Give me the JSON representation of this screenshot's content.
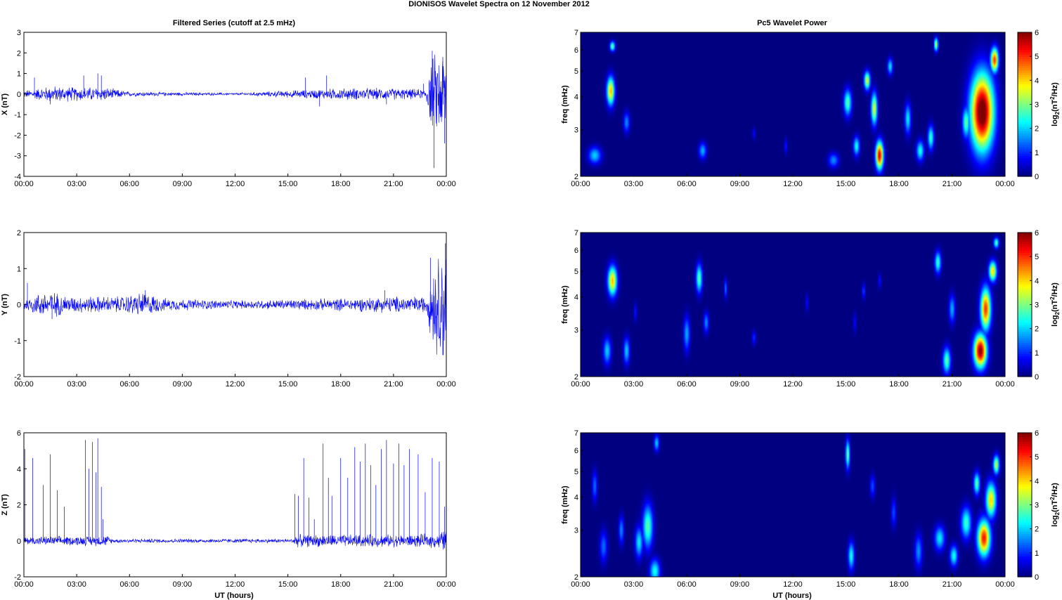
{
  "figure": {
    "title": "DIONISOS Wavelet Spectra on 12 November  2012",
    "left_title": "Filtered Series (cutoff at 2.5 mHz)",
    "right_title": "Pc5 Wavelet Power",
    "xlabel": "UT (hours)"
  },
  "chart_data": [
    {
      "type": "line",
      "panel": "X",
      "ylabel": "X (nT)",
      "ylim": [
        -4,
        3
      ],
      "yticks": [
        "3",
        "2",
        "1",
        "0",
        "-1",
        "-2",
        "-3",
        "-4"
      ],
      "xlim": [
        0,
        24
      ],
      "xticks": [
        "00:00",
        "03:00",
        "06:00",
        "09:00",
        "12:00",
        "15:00",
        "18:00",
        "21:00",
        "00:00"
      ],
      "series": [
        {
          "color": "#0000ff",
          "envelope": [
            [
              0,
              0.15
            ],
            [
              1.5,
              0.35
            ],
            [
              3,
              0.3
            ],
            [
              4.5,
              0.3
            ],
            [
              6,
              0.1
            ],
            [
              12,
              0.05
            ],
            [
              15,
              0.15
            ],
            [
              18,
              0.25
            ],
            [
              21,
              0.25
            ],
            [
              22.8,
              0.2
            ],
            [
              23.2,
              1.6
            ],
            [
              24,
              2.0
            ]
          ],
          "spikes": [
            [
              0.6,
              0.8
            ],
            [
              1.5,
              -0.5
            ],
            [
              3.4,
              0.9
            ],
            [
              4.2,
              1.0
            ],
            [
              4.4,
              0.9
            ],
            [
              16,
              0.8
            ],
            [
              16.8,
              -0.6
            ],
            [
              17.2,
              0.9
            ],
            [
              20.6,
              -0.5
            ],
            [
              22.7,
              0.5
            ],
            [
              23.2,
              2.1
            ],
            [
              23.3,
              -3.6
            ],
            [
              23.8,
              1.8
            ],
            [
              23.9,
              -2.4
            ],
            [
              24,
              2.2
            ]
          ]
        }
      ],
      "grid": false
    },
    {
      "type": "line",
      "panel": "Y",
      "ylabel": "Y (nT)",
      "ylim": [
        -2,
        2
      ],
      "yticks": [
        "2",
        "1",
        "0",
        "-1",
        "-2"
      ],
      "xlim": [
        0,
        24
      ],
      "xticks": [
        "00:00",
        "03:00",
        "06:00",
        "09:00",
        "12:00",
        "15:00",
        "18:00",
        "21:00",
        "00:00"
      ],
      "series": [
        {
          "color": "#0000ff",
          "envelope": [
            [
              0,
              0.15
            ],
            [
              1.4,
              0.35
            ],
            [
              2.5,
              0.2
            ],
            [
              5.5,
              0.2
            ],
            [
              6.8,
              0.3
            ],
            [
              8,
              0.15
            ],
            [
              12,
              0.1
            ],
            [
              18,
              0.15
            ],
            [
              21,
              0.2
            ],
            [
              22.9,
              0.2
            ],
            [
              23.2,
              1.0
            ],
            [
              24,
              1.5
            ]
          ],
          "spikes": [
            [
              0.2,
              0.6
            ],
            [
              1.6,
              -0.4
            ],
            [
              6.9,
              0.4
            ],
            [
              20.5,
              0.4
            ],
            [
              23.1,
              1.3
            ],
            [
              23.4,
              -0.8
            ],
            [
              23.8,
              -1.4
            ],
            [
              23.95,
              1.7
            ],
            [
              24,
              -1.6
            ]
          ]
        }
      ],
      "grid": false
    },
    {
      "type": "line",
      "panel": "Z",
      "ylabel": "Z (nT)",
      "ylim": [
        -2,
        6
      ],
      "yticks": [
        "6",
        "4",
        "2",
        "0",
        "-2"
      ],
      "xlim": [
        0,
        24
      ],
      "xticks": [
        "00:00",
        "03:00",
        "06:00",
        "09:00",
        "12:00",
        "15:00",
        "18:00",
        "21:00",
        "00:00"
      ],
      "series": [
        {
          "color": "#0000ff",
          "envelope": [
            [
              0,
              0.2
            ],
            [
              4.8,
              0.25
            ],
            [
              5.0,
              0.1
            ],
            [
              15.3,
              0.1
            ],
            [
              15.4,
              0.3
            ],
            [
              22,
              0.3
            ],
            [
              23.5,
              0.35
            ],
            [
              24,
              0.6
            ]
          ],
          "spikes": [
            [
              0.05,
              5.1
            ],
            [
              0.5,
              4.6
            ],
            [
              1.1,
              3.1
            ],
            [
              1.5,
              4.8
            ],
            [
              1.9,
              2.8
            ],
            [
              2.3,
              1.9
            ],
            [
              3.5,
              5.6
            ],
            [
              3.7,
              4.0
            ],
            [
              3.9,
              5.5
            ],
            [
              4.1,
              3.8
            ],
            [
              4.2,
              5.7
            ],
            [
              4.4,
              3.0
            ],
            [
              4.5,
              1.2
            ],
            [
              15.4,
              2.6
            ],
            [
              15.6,
              2.5
            ],
            [
              15.9,
              4.6
            ],
            [
              16.2,
              2.4
            ],
            [
              16.5,
              1.2
            ],
            [
              17.0,
              5.4
            ],
            [
              17.3,
              3.5
            ],
            [
              17.5,
              2.5
            ],
            [
              18.0,
              4.6
            ],
            [
              18.4,
              3.5
            ],
            [
              18.8,
              5.2
            ],
            [
              19.1,
              4.4
            ],
            [
              19.4,
              5.4
            ],
            [
              19.7,
              4.2
            ],
            [
              20.0,
              3.1
            ],
            [
              20.3,
              5.1
            ],
            [
              20.6,
              5.6
            ],
            [
              21.0,
              4.3
            ],
            [
              21.3,
              5.4
            ],
            [
              21.6,
              4.2
            ],
            [
              21.9,
              5.1
            ],
            [
              22.4,
              4.8
            ],
            [
              22.8,
              2.7
            ],
            [
              23.2,
              4.6
            ],
            [
              23.6,
              4.4
            ],
            [
              23.9,
              1.9
            ]
          ]
        }
      ],
      "grid": false
    },
    {
      "type": "heatmap",
      "panel": "X",
      "ylabel": "freq (mHz)",
      "yscale": "log",
      "ylim": [
        2,
        7
      ],
      "yticks": [
        "7",
        "6",
        "5",
        "4",
        "3",
        "2"
      ],
      "xlim": [
        0,
        24
      ],
      "xticks": [
        "00:00",
        "03:00",
        "06:00",
        "09:00",
        "12:00",
        "15:00",
        "18:00",
        "21:00",
        "00:00"
      ],
      "colorbar": {
        "label": "log2(nT2/Hz)",
        "range": [
          0,
          6
        ],
        "ticks": [
          "6",
          "5",
          "4",
          "3",
          "2",
          "1",
          "0"
        ],
        "colormap": "jet"
      },
      "blobs": [
        [
          1.7,
          4.2,
          0.15,
          0.35,
          4.2
        ],
        [
          1.8,
          6.2,
          0.1,
          0.18,
          3.0
        ],
        [
          0.8,
          2.4,
          0.25,
          0.12,
          2.0
        ],
        [
          2.6,
          3.2,
          0.12,
          0.2,
          1.6
        ],
        [
          6.9,
          2.5,
          0.15,
          0.12,
          1.8
        ],
        [
          9.8,
          2.9,
          0.06,
          0.1,
          0.8
        ],
        [
          11.6,
          2.6,
          0.06,
          0.12,
          1.0
        ],
        [
          14.3,
          2.3,
          0.2,
          0.1,
          1.6
        ],
        [
          15.1,
          3.8,
          0.15,
          0.3,
          2.8
        ],
        [
          15.6,
          2.6,
          0.12,
          0.15,
          2.4
        ],
        [
          16.2,
          4.6,
          0.12,
          0.25,
          3.6
        ],
        [
          16.6,
          3.6,
          0.12,
          0.35,
          3.6
        ],
        [
          16.9,
          2.4,
          0.15,
          0.2,
          5.5
        ],
        [
          17.5,
          5.2,
          0.1,
          0.25,
          2.2
        ],
        [
          18.5,
          3.3,
          0.12,
          0.3,
          2.2
        ],
        [
          19.2,
          2.5,
          0.15,
          0.15,
          2.4
        ],
        [
          19.8,
          2.8,
          0.12,
          0.2,
          2.6
        ],
        [
          20.1,
          6.3,
          0.08,
          0.25,
          3.4
        ],
        [
          21.8,
          3.2,
          0.15,
          0.3,
          2.8
        ],
        [
          22.7,
          3.5,
          0.45,
          0.8,
          6.5
        ],
        [
          23.4,
          5.5,
          0.15,
          0.4,
          5.0
        ]
      ]
    },
    {
      "type": "heatmap",
      "panel": "Y",
      "ylabel": "freq (mHz)",
      "yscale": "log",
      "ylim": [
        2,
        7
      ],
      "yticks": [
        "7",
        "6",
        "5",
        "4",
        "3",
        "2"
      ],
      "xlim": [
        0,
        24
      ],
      "xticks": [
        "00:00",
        "03:00",
        "06:00",
        "09:00",
        "12:00",
        "15:00",
        "18:00",
        "21:00",
        "00:00"
      ],
      "colorbar": {
        "label": "log2(nT2/Hz)",
        "range": [
          0,
          6
        ],
        "ticks": [
          "6",
          "5",
          "4",
          "3",
          "2",
          "1",
          "0"
        ],
        "colormap": "jet"
      },
      "blobs": [
        [
          1.8,
          4.6,
          0.18,
          0.4,
          4.2
        ],
        [
          1.5,
          2.5,
          0.15,
          0.2,
          2.0
        ],
        [
          2.6,
          2.5,
          0.12,
          0.2,
          2.0
        ],
        [
          3.1,
          3.5,
          0.06,
          0.2,
          0.9
        ],
        [
          6.0,
          2.9,
          0.12,
          0.3,
          1.8
        ],
        [
          6.7,
          4.7,
          0.12,
          0.4,
          2.8
        ],
        [
          7.1,
          3.2,
          0.1,
          0.2,
          1.6
        ],
        [
          8.2,
          4.3,
          0.06,
          0.25,
          1.4
        ],
        [
          9.8,
          2.8,
          0.08,
          0.12,
          1.0
        ],
        [
          12.8,
          3.8,
          0.06,
          0.2,
          0.8
        ],
        [
          15.5,
          3.2,
          0.06,
          0.2,
          0.8
        ],
        [
          16.0,
          4.2,
          0.06,
          0.2,
          1.2
        ],
        [
          16.9,
          4.6,
          0.06,
          0.2,
          0.9
        ],
        [
          20.2,
          5.4,
          0.12,
          0.35,
          2.6
        ],
        [
          20.7,
          2.3,
          0.15,
          0.18,
          2.8
        ],
        [
          21.0,
          3.6,
          0.12,
          0.3,
          1.8
        ],
        [
          22.6,
          2.5,
          0.25,
          0.25,
          6.0
        ],
        [
          22.9,
          3.6,
          0.2,
          0.45,
          5.0
        ],
        [
          23.3,
          5.0,
          0.15,
          0.3,
          4.0
        ],
        [
          23.5,
          6.4,
          0.1,
          0.2,
          2.8
        ]
      ]
    },
    {
      "type": "heatmap",
      "panel": "Z",
      "ylabel": "freq (mHz)",
      "yscale": "log",
      "ylim": [
        2,
        7
      ],
      "yticks": [
        "7",
        "6",
        "5",
        "4",
        "3",
        "2"
      ],
      "xlim": [
        0,
        24
      ],
      "xticks": [
        "00:00",
        "03:00",
        "06:00",
        "09:00",
        "12:00",
        "15:00",
        "18:00",
        "21:00",
        "00:00"
      ],
      "colorbar": {
        "label": "log2(nT2/Hz)",
        "range": [
          0,
          6
        ],
        "ticks": [
          "6",
          "5",
          "4",
          "3",
          "2",
          "1",
          "0"
        ],
        "colormap": "jet"
      },
      "blobs": [
        [
          0.8,
          4.4,
          0.1,
          0.4,
          1.4
        ],
        [
          1.3,
          2.6,
          0.15,
          0.25,
          1.4
        ],
        [
          2.3,
          3.0,
          0.1,
          0.25,
          1.6
        ],
        [
          3.3,
          2.7,
          0.15,
          0.25,
          2.2
        ],
        [
          3.8,
          3.1,
          0.2,
          0.4,
          2.8
        ],
        [
          4.2,
          2.1,
          0.2,
          0.15,
          2.4
        ],
        [
          4.3,
          6.4,
          0.1,
          0.3,
          2.0
        ],
        [
          15.1,
          5.8,
          0.08,
          0.5,
          3.0
        ],
        [
          15.3,
          2.4,
          0.12,
          0.2,
          2.4
        ],
        [
          16.5,
          4.4,
          0.1,
          0.3,
          1.2
        ],
        [
          17.7,
          3.5,
          0.1,
          0.3,
          1.2
        ],
        [
          19.1,
          2.5,
          0.15,
          0.25,
          1.6
        ],
        [
          20.3,
          2.8,
          0.2,
          0.2,
          2.2
        ],
        [
          21.1,
          2.4,
          0.15,
          0.15,
          2.4
        ],
        [
          21.8,
          3.2,
          0.2,
          0.3,
          2.6
        ],
        [
          22.4,
          4.5,
          0.12,
          0.3,
          2.8
        ],
        [
          22.8,
          2.8,
          0.25,
          0.3,
          5.2
        ],
        [
          23.2,
          3.9,
          0.2,
          0.4,
          4.0
        ],
        [
          23.5,
          5.3,
          0.12,
          0.3,
          3.4
        ]
      ]
    }
  ]
}
